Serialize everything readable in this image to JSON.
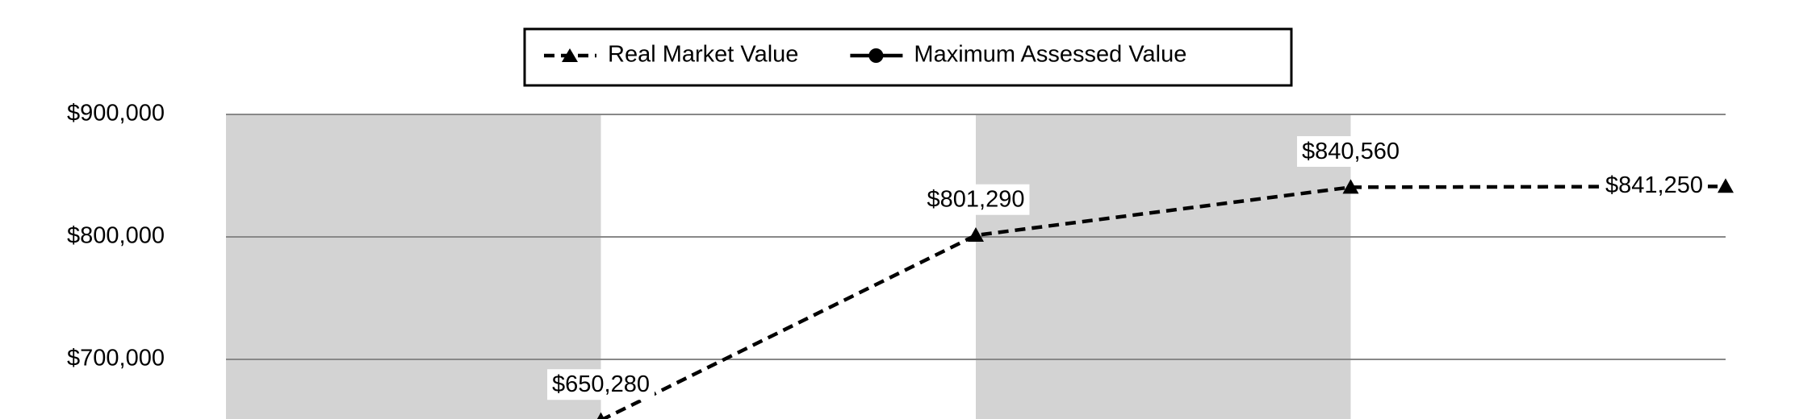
{
  "chart_data": {
    "type": "line",
    "categories": [
      null,
      null,
      null,
      null
    ],
    "series": [
      {
        "name": "Real Market Value",
        "color": "#000000",
        "line_style": "dashed",
        "marker": "triangle",
        "values": [
          650280,
          801290,
          840560,
          841250
        ],
        "value_labels": [
          "$650,280",
          "$801,290",
          "$840,560",
          "$841,250"
        ]
      },
      {
        "name": "Maximum Assessed Value",
        "color": "#000000",
        "line_style": "solid",
        "marker": "circle",
        "values": [
          null,
          null,
          null,
          null
        ]
      }
    ],
    "ylim": [
      650000,
      900000
    ],
    "yticks": [
      {
        "value": 700000,
        "label": "$700,000"
      },
      {
        "value": 800000,
        "label": "$800,000"
      },
      {
        "value": 900000,
        "label": "$900,000"
      }
    ],
    "grid": true,
    "legend": "top"
  }
}
